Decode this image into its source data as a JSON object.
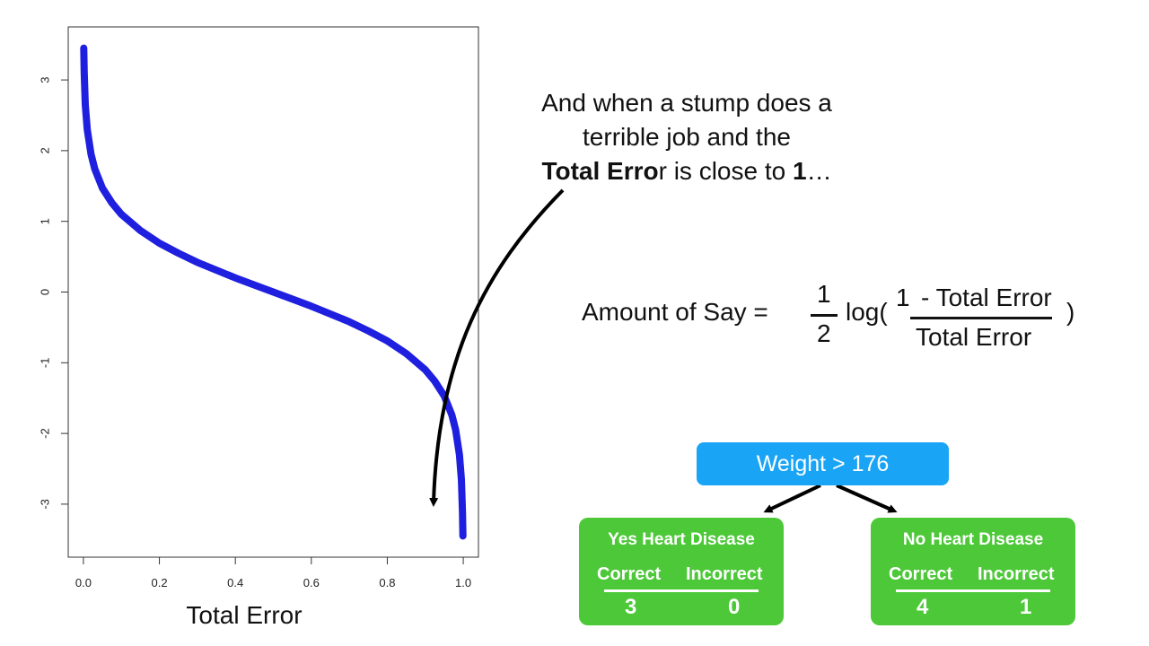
{
  "chart_data": {
    "type": "line",
    "xlabel": "Total Error",
    "ylabel": "",
    "xlim": [
      -0.04,
      1.04
    ],
    "ylim": [
      -3.75,
      3.75
    ],
    "x_ticks": [
      "0.0",
      "0.2",
      "0.4",
      "0.6",
      "0.8",
      "1.0"
    ],
    "y_ticks": [
      "3",
      "2",
      "1",
      "0",
      "-1",
      "-2",
      "-3"
    ],
    "series": [
      {
        "color": "#1f1fe0",
        "x": [
          0.001,
          0.002,
          0.005,
          0.01,
          0.02,
          0.03,
          0.05,
          0.075,
          0.1,
          0.15,
          0.2,
          0.25,
          0.3,
          0.35,
          0.4,
          0.45,
          0.5,
          0.55,
          0.6,
          0.65,
          0.7,
          0.75,
          0.8,
          0.85,
          0.9,
          0.925,
          0.95,
          0.97,
          0.98,
          0.99,
          0.995,
          0.998,
          0.999
        ],
        "y": [
          3.45,
          3.11,
          2.65,
          2.3,
          1.95,
          1.74,
          1.47,
          1.26,
          1.1,
          0.87,
          0.69,
          0.55,
          0.42,
          0.31,
          0.2,
          0.1,
          0.0,
          -0.1,
          -0.2,
          -0.31,
          -0.42,
          -0.55,
          -0.69,
          -0.87,
          -1.1,
          -1.26,
          -1.47,
          -1.74,
          -1.95,
          -2.3,
          -2.65,
          -3.11,
          -3.45
        ]
      }
    ]
  },
  "callout": {
    "line1": "And when a stump does a",
    "line2": "terrible job and the",
    "line3_bold": "Total Erro",
    "line3_mid": "r is close to ",
    "line3_bold2": "1",
    "line3_end": "…"
  },
  "formula": {
    "lhs": "Amount of Say =",
    "half_num": "1",
    "half_den": "2",
    "log": "log(",
    "one": "1",
    "numerator": "- Total Error",
    "denominator": "Total Error",
    "close": ")"
  },
  "tree": {
    "root": "Weight > 176",
    "left": {
      "title": "Yes Heart Disease",
      "correct_label": "Correct",
      "incorrect_label": "Incorrect",
      "correct": "3",
      "incorrect": "0"
    },
    "right": {
      "title": "No Heart Disease",
      "correct_label": "Correct",
      "incorrect_label": "Incorrect",
      "correct": "4",
      "incorrect": "1"
    }
  },
  "colors": {
    "curve": "#1f1fe0",
    "root_node": "#1aa4f5",
    "leaf_node": "#4cc838"
  }
}
